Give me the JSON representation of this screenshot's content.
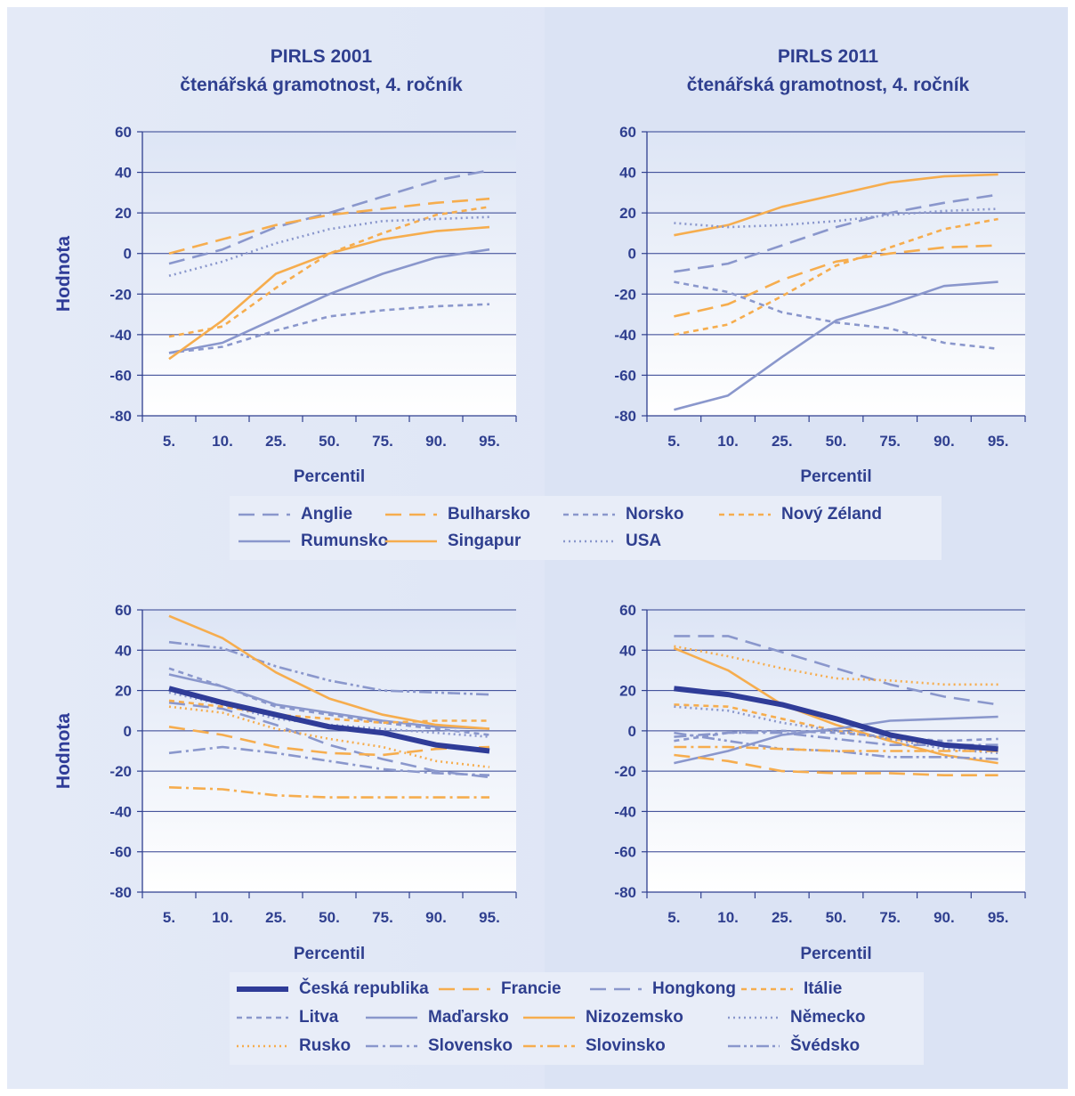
{
  "colors": {
    "blue": "#8a97cc",
    "orange": "#f6ad4e",
    "dark_blue": "#2f3c98",
    "label": "#2f3f8f"
  },
  "legend_top": [
    {
      "label": "Anglie",
      "color": "#8a97cc",
      "dash": "long-dash"
    },
    {
      "label": "Bulharsko",
      "color": "#f6ad4e",
      "dash": "long-dash"
    },
    {
      "label": "Norsko",
      "color": "#8a97cc",
      "dash": "short-dash"
    },
    {
      "label": "Nový Zéland",
      "color": "#f6ad4e",
      "dash": "short-dash"
    },
    {
      "label": "Rumunsko",
      "color": "#8a97cc",
      "dash": "solid"
    },
    {
      "label": "Singapur",
      "color": "#f6ad4e",
      "dash": "solid"
    },
    {
      "label": "USA",
      "color": "#8a97cc",
      "dash": "dotted"
    }
  ],
  "legend_bottom": [
    {
      "label": "Česká republika",
      "color": "#2f3c98",
      "dash": "solid-thick"
    },
    {
      "label": "Francie",
      "color": "#f6ad4e",
      "dash": "long-dash"
    },
    {
      "label": "Hongkong",
      "color": "#8a97cc",
      "dash": "long-dash"
    },
    {
      "label": "Itálie",
      "color": "#f6ad4e",
      "dash": "short-dash"
    },
    {
      "label": "Litva",
      "color": "#8a97cc",
      "dash": "short-dash"
    },
    {
      "label": "Maďarsko",
      "color": "#8a97cc",
      "dash": "solid"
    },
    {
      "label": "Nizozemsko",
      "color": "#f6ad4e",
      "dash": "solid"
    },
    {
      "label": "Německo",
      "color": "#8a97cc",
      "dash": "dotted"
    },
    {
      "label": "Rusko",
      "color": "#f6ad4e",
      "dash": "dotted"
    },
    {
      "label": "Slovensko",
      "color": "#8a97cc",
      "dash": "dash-dot"
    },
    {
      "label": "Slovinsko",
      "color": "#f6ad4e",
      "dash": "dash-dot"
    },
    {
      "label": "Švédsko",
      "color": "#8a97cc",
      "dash": "dash-dot-dot"
    }
  ],
  "chart_data": [
    {
      "type": "line",
      "title": [
        "PIRLS 2001",
        "čtenářská gramotnost, 4. ročník"
      ],
      "xlabel": "Percentil",
      "ylabel": "Hodnota",
      "categories": [
        "5.",
        "10.",
        "25.",
        "50.",
        "75.",
        "90.",
        "95."
      ],
      "ylim": [
        -80,
        60
      ],
      "yticks": [
        60,
        40,
        20,
        0,
        -20,
        -40,
        -60,
        -80
      ],
      "grid": true,
      "series": [
        {
          "name": "Anglie",
          "color": "#8a97cc",
          "dash": "long-dash",
          "values": [
            -5,
            2,
            13,
            20,
            28,
            36,
            41
          ]
        },
        {
          "name": "Bulharsko",
          "color": "#f6ad4e",
          "dash": "long-dash",
          "values": [
            0,
            7,
            14,
            19,
            22,
            25,
            27
          ]
        },
        {
          "name": "Norsko",
          "color": "#8a97cc",
          "dash": "short-dash",
          "values": [
            -49,
            -46,
            -38,
            -31,
            -28,
            -26,
            -25
          ]
        },
        {
          "name": "Nový Zéland",
          "color": "#f6ad4e",
          "dash": "short-dash",
          "values": [
            -41,
            -36,
            -17,
            0,
            10,
            19,
            23
          ]
        },
        {
          "name": "Rumunsko",
          "color": "#8a97cc",
          "dash": "solid",
          "values": [
            -49,
            -44,
            -32,
            -20,
            -10,
            -2,
            2
          ]
        },
        {
          "name": "Singapur",
          "color": "#f6ad4e",
          "dash": "solid",
          "values": [
            -52,
            -33,
            -10,
            0,
            7,
            11,
            13
          ]
        },
        {
          "name": "USA",
          "color": "#8a97cc",
          "dash": "dotted",
          "values": [
            -11,
            -4,
            5,
            12,
            16,
            17,
            18
          ]
        }
      ]
    },
    {
      "type": "line",
      "title": [
        "PIRLS 2011",
        "čtenářská gramotnost, 4. ročník"
      ],
      "xlabel": "Percentil",
      "ylabel": "",
      "categories": [
        "5.",
        "10.",
        "25.",
        "50.",
        "75.",
        "90.",
        "95."
      ],
      "ylim": [
        -80,
        60
      ],
      "yticks": [
        60,
        40,
        20,
        0,
        -20,
        -40,
        -60,
        -80
      ],
      "grid": true,
      "series": [
        {
          "name": "Anglie",
          "color": "#8a97cc",
          "dash": "long-dash",
          "values": [
            -9,
            -5,
            4,
            13,
            20,
            25,
            29
          ]
        },
        {
          "name": "Bulharsko",
          "color": "#f6ad4e",
          "dash": "long-dash",
          "values": [
            -31,
            -25,
            -13,
            -4,
            0,
            3,
            4
          ]
        },
        {
          "name": "Norsko",
          "color": "#8a97cc",
          "dash": "short-dash",
          "values": [
            -14,
            -19,
            -29,
            -34,
            -37,
            -44,
            -47
          ]
        },
        {
          "name": "Nový Zéland",
          "color": "#f6ad4e",
          "dash": "short-dash",
          "values": [
            -40,
            -35,
            -21,
            -6,
            3,
            12,
            17
          ]
        },
        {
          "name": "Rumunsko",
          "color": "#8a97cc",
          "dash": "solid",
          "values": [
            -77,
            -70,
            -51,
            -33,
            -25,
            -16,
            -14
          ]
        },
        {
          "name": "Singapur",
          "color": "#f6ad4e",
          "dash": "solid",
          "values": [
            9,
            14,
            23,
            29,
            35,
            38,
            39
          ]
        },
        {
          "name": "USA",
          "color": "#8a97cc",
          "dash": "dotted",
          "values": [
            15,
            13,
            14,
            16,
            19,
            21,
            22
          ]
        }
      ]
    },
    {
      "type": "line",
      "title": [],
      "xlabel": "Percentil",
      "ylabel": "Hodnota",
      "categories": [
        "5.",
        "10.",
        "25.",
        "50.",
        "75.",
        "90.",
        "95."
      ],
      "ylim": [
        -80,
        60
      ],
      "yticks": [
        60,
        40,
        20,
        0,
        -20,
        -40,
        -60,
        -80
      ],
      "grid": true,
      "series": [
        {
          "name": "Hongkong",
          "color": "#8a97cc",
          "dash": "long-dash",
          "values": [
            14,
            11,
            3,
            -7,
            -14,
            -20,
            -23
          ]
        },
        {
          "name": "Švédsko",
          "color": "#8a97cc",
          "dash": "dash-dot-dot",
          "values": [
            44,
            41,
            32,
            25,
            20,
            19,
            18
          ]
        },
        {
          "name": "Litva",
          "color": "#8a97cc",
          "dash": "short-dash",
          "values": [
            31,
            22,
            12,
            8,
            4,
            1,
            -2
          ]
        },
        {
          "name": "Maďarsko",
          "color": "#8a97cc",
          "dash": "solid",
          "values": [
            28,
            22,
            13,
            9,
            5,
            2,
            1
          ]
        },
        {
          "name": "Německo",
          "color": "#8a97cc",
          "dash": "dotted",
          "values": [
            19,
            13,
            6,
            3,
            1,
            -1,
            -3
          ]
        },
        {
          "name": "Itálie",
          "color": "#f6ad4e",
          "dash": "short-dash",
          "values": [
            15,
            12,
            8,
            6,
            4,
            5,
            5
          ]
        },
        {
          "name": "Nizozemsko",
          "color": "#f6ad4e",
          "dash": "solid",
          "values": [
            57,
            46,
            29,
            16,
            8,
            3,
            1
          ]
        },
        {
          "name": "Rusko",
          "color": "#f6ad4e",
          "dash": "dotted",
          "values": [
            12,
            9,
            1,
            -4,
            -8,
            -15,
            -18
          ]
        },
        {
          "name": "Francie",
          "color": "#f6ad4e",
          "dash": "long-dash",
          "values": [
            2,
            -2,
            -8,
            -11,
            -12,
            -9,
            -8
          ]
        },
        {
          "name": "Slovensko",
          "color": "#8a97cc",
          "dash": "dash-dot",
          "values": [
            -11,
            -8,
            -11,
            -15,
            -19,
            -21,
            -22
          ]
        },
        {
          "name": "Slovinsko",
          "color": "#f6ad4e",
          "dash": "dash-dot",
          "values": [
            -28,
            -29,
            -32,
            -33,
            -33,
            -33,
            -33
          ]
        },
        {
          "name": "Česká republika",
          "color": "#2f3c98",
          "dash": "solid-thick",
          "values": [
            21,
            14,
            8,
            2,
            -1,
            -7,
            -10
          ]
        }
      ]
    },
    {
      "type": "line",
      "title": [],
      "xlabel": "Percentil",
      "ylabel": "",
      "categories": [
        "5.",
        "10.",
        "25.",
        "50.",
        "75.",
        "90.",
        "95."
      ],
      "ylim": [
        -80,
        60
      ],
      "yticks": [
        60,
        40,
        20,
        0,
        -20,
        -40,
        -60,
        -80
      ],
      "grid": true,
      "series": [
        {
          "name": "Hongkong",
          "color": "#8a97cc",
          "dash": "long-dash",
          "values": [
            47,
            47,
            39,
            31,
            23,
            17,
            13
          ]
        },
        {
          "name": "Rusko",
          "color": "#f6ad4e",
          "dash": "dotted",
          "values": [
            42,
            37,
            31,
            26,
            25,
            23,
            23
          ]
        },
        {
          "name": "Nizozemsko",
          "color": "#f6ad4e",
          "dash": "solid",
          "values": [
            41,
            30,
            13,
            3,
            -5,
            -12,
            -16
          ]
        },
        {
          "name": "Itálie",
          "color": "#f6ad4e",
          "dash": "short-dash",
          "values": [
            13,
            12,
            6,
            0,
            -4,
            -7,
            -9
          ]
        },
        {
          "name": "Německo",
          "color": "#8a97cc",
          "dash": "dotted",
          "values": [
            12,
            10,
            4,
            0,
            -4,
            -9,
            -11
          ]
        },
        {
          "name": "Maďarsko",
          "color": "#8a97cc",
          "dash": "solid",
          "values": [
            -16,
            -10,
            -2,
            1,
            5,
            6,
            7
          ]
        },
        {
          "name": "Litva",
          "color": "#8a97cc",
          "dash": "short-dash",
          "values": [
            -5,
            -1,
            0,
            -1,
            -3,
            -5,
            -4
          ]
        },
        {
          "name": "Švédsko",
          "color": "#8a97cc",
          "dash": "dash-dot-dot",
          "values": [
            -1,
            -5,
            -9,
            -10,
            -13,
            -13,
            -14
          ]
        },
        {
          "name": "Slovensko",
          "color": "#8a97cc",
          "dash": "dash-dot",
          "values": [
            -3,
            -1,
            -1,
            -4,
            -7,
            -7,
            -7
          ]
        },
        {
          "name": "Slovinsko",
          "color": "#f6ad4e",
          "dash": "dash-dot",
          "values": [
            -8,
            -8,
            -9,
            -10,
            -10,
            -10,
            -10
          ]
        },
        {
          "name": "Francie",
          "color": "#f6ad4e",
          "dash": "long-dash",
          "values": [
            -12,
            -15,
            -20,
            -21,
            -21,
            -22,
            -22
          ]
        },
        {
          "name": "Česká republika",
          "color": "#2f3c98",
          "dash": "solid-thick",
          "values": [
            21,
            18,
            13,
            6,
            -2,
            -7,
            -9
          ]
        }
      ]
    }
  ]
}
